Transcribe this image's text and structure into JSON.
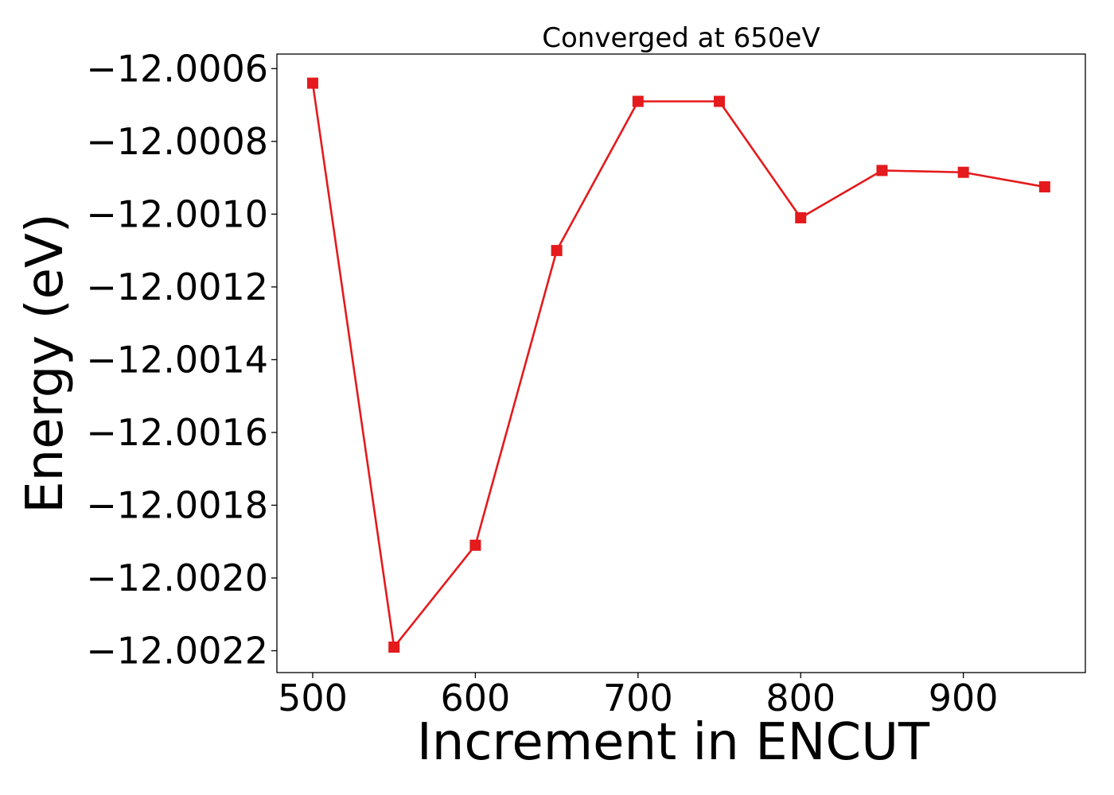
{
  "chart_data": {
    "type": "line",
    "title": "Converged at 650eV",
    "xlabel": "Increment in ENCUT",
    "ylabel": "Energy (eV)",
    "xlim": [
      478,
      975
    ],
    "ylim": [
      -12.00226,
      -12.00056
    ],
    "xticks": [
      500,
      600,
      700,
      800,
      900
    ],
    "xtick_labels": [
      "500",
      "600",
      "700",
      "800",
      "900"
    ],
    "yticks": [
      -12.0006,
      -12.0008,
      -12.001,
      -12.0012,
      -12.0014,
      -12.0016,
      -12.0018,
      -12.002,
      -12.0022
    ],
    "ytick_labels": [
      "−12.0006",
      "−12.0008",
      "−12.0010",
      "−12.0012",
      "−12.0014",
      "−12.0016",
      "−12.0018",
      "−12.0020",
      "−12.0022"
    ],
    "grid": false,
    "series": [
      {
        "color": "#e41a1c",
        "marker": "square",
        "x": [
          500,
          550,
          600,
          650,
          700,
          750,
          800,
          850,
          900,
          950
        ],
        "y": [
          -12.00064,
          -12.00219,
          -12.00191,
          -12.0011,
          -12.00069,
          -12.00069,
          -12.00101,
          -12.00088,
          -12.000885,
          -12.000925
        ]
      }
    ]
  }
}
